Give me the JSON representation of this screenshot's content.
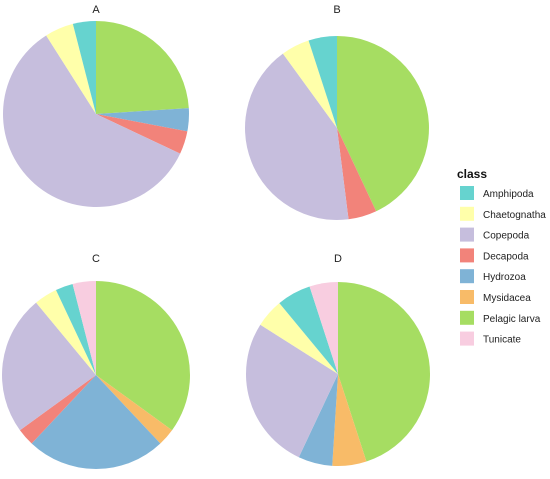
{
  "chart_data": {
    "type": "pie",
    "legend": {
      "title": "class",
      "placement": "right",
      "entries": [
        {
          "name": "Amphipoda",
          "color": "#66d3cf"
        },
        {
          "name": "Chaetognatha",
          "color": "#ffffaa"
        },
        {
          "name": "Copepoda",
          "color": "#c6bedd"
        },
        {
          "name": "Decapoda",
          "color": "#f2837a"
        },
        {
          "name": "Hydrozoa",
          "color": "#7fb3d6"
        },
        {
          "name": "Mysidacea",
          "color": "#f8bb68"
        },
        {
          "name": "Pelagic larva",
          "color": "#a6dd62"
        },
        {
          "name": "Tunicate",
          "color": "#f8cde0"
        }
      ]
    },
    "panels": [
      {
        "title": "A",
        "slices": [
          {
            "class": "Pelagic larva",
            "value": 24
          },
          {
            "class": "Hydrozoa",
            "value": 4
          },
          {
            "class": "Decapoda",
            "value": 4
          },
          {
            "class": "Copepoda",
            "value": 59
          },
          {
            "class": "Chaetognatha",
            "value": 5
          },
          {
            "class": "Amphipoda",
            "value": 4
          }
        ]
      },
      {
        "title": "B",
        "slices": [
          {
            "class": "Pelagic larva",
            "value": 43
          },
          {
            "class": "Decapoda",
            "value": 5
          },
          {
            "class": "Copepoda",
            "value": 42
          },
          {
            "class": "Chaetognatha",
            "value": 5
          },
          {
            "class": "Amphipoda",
            "value": 5
          }
        ]
      },
      {
        "title": "C",
        "slices": [
          {
            "class": "Pelagic larva",
            "value": 35
          },
          {
            "class": "Mysidacea",
            "value": 3
          },
          {
            "class": "Hydrozoa",
            "value": 24
          },
          {
            "class": "Decapoda",
            "value": 3
          },
          {
            "class": "Copepoda",
            "value": 24
          },
          {
            "class": "Chaetognatha",
            "value": 4
          },
          {
            "class": "Amphipoda",
            "value": 3
          },
          {
            "class": "Tunicate",
            "value": 4
          }
        ]
      },
      {
        "title": "D",
        "slices": [
          {
            "class": "Pelagic larva",
            "value": 45
          },
          {
            "class": "Mysidacea",
            "value": 6
          },
          {
            "class": "Hydrozoa",
            "value": 6
          },
          {
            "class": "Copepoda",
            "value": 27
          },
          {
            "class": "Chaetognatha",
            "value": 5
          },
          {
            "class": "Amphipoda",
            "value": 6
          },
          {
            "class": "Tunicate",
            "value": 5
          }
        ]
      }
    ]
  }
}
